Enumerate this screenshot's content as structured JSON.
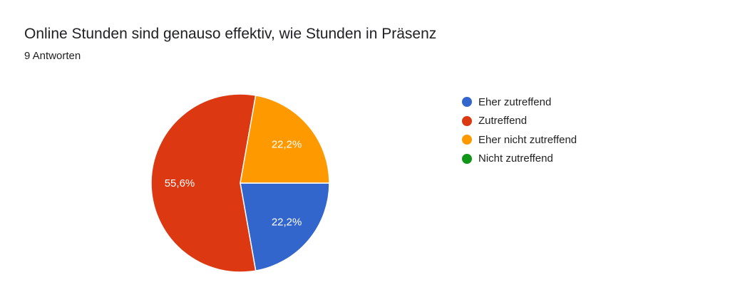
{
  "title": "Online Stunden sind genauso effektiv, wie Stunden in Präsenz",
  "subtitle": "9 Antworten",
  "chart_data": {
    "type": "pie",
    "title": "Online Stunden sind genauso effektiv, wie Stunden in Präsenz",
    "legend_position": "right",
    "categories": [
      "Eher zutreffend",
      "Zutreffend",
      "Eher nicht zutreffend",
      "Nicht zutreffend"
    ],
    "values": [
      2,
      5,
      2,
      0
    ],
    "labels": [
      "22,2%",
      "55,6%",
      "22,2%",
      ""
    ],
    "colors": [
      "#3366cc",
      "#dc3912",
      "#ff9900",
      "#109618"
    ]
  }
}
